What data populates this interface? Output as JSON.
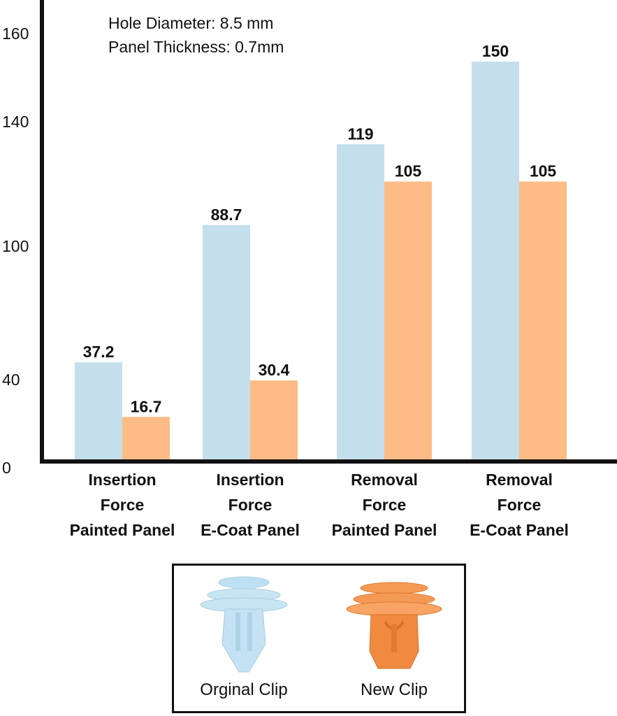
{
  "chart_data": {
    "type": "bar",
    "annotations": [
      "Hole Diameter: 8.5 mm",
      "Panel Thickness: 0.7mm"
    ],
    "categories": [
      [
        "Insertion",
        "Force",
        "Painted Panel"
      ],
      [
        "Insertion",
        "Force",
        "E-Coat Panel"
      ],
      [
        "Removal",
        "Force",
        "Painted Panel"
      ],
      [
        "Removal",
        "Force",
        "E-Coat Panel"
      ]
    ],
    "series": [
      {
        "name": "Orginal Clip",
        "color": "#c4dfeb",
        "values": [
          37.2,
          88.7,
          119,
          150
        ],
        "labels": [
          "37.2",
          "88.7",
          "119",
          "150"
        ]
      },
      {
        "name": "New Clip",
        "color": "#fdbb85",
        "values": [
          16.7,
          30.4,
          105,
          105
        ],
        "labels": [
          "16.7",
          "30.4",
          "105",
          "105"
        ]
      }
    ],
    "y_ticks": [
      "0",
      "40",
      "100",
      "140",
      "160"
    ],
    "ylim": [
      0,
      170
    ],
    "grid": false,
    "legend_position": "bottom"
  },
  "legend": {
    "original_label": "Orginal Clip",
    "new_label": "New Clip",
    "original_icon": "light-blue-clip-icon",
    "new_icon": "orange-clip-icon"
  }
}
